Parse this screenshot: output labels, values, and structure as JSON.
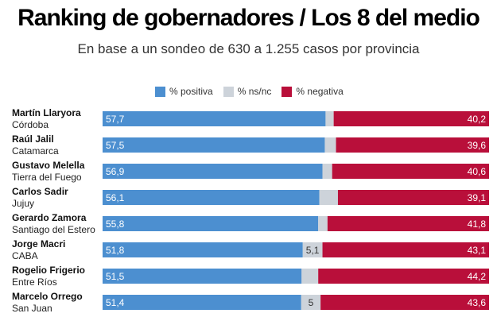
{
  "header": {
    "title": "Ranking de gobernadores / Los 8 del medio",
    "subtitle": "En base a un sondeo de 630 a 1.255 casos por provincia"
  },
  "legend": {
    "positive": "% positiva",
    "nsnc": "% ns/nc",
    "negative": "% negativa"
  },
  "colors": {
    "positive": "#4c8fd0",
    "nsnc": "#cdd3da",
    "negative": "#b90f3a"
  },
  "rows": [
    {
      "name": "Martín Llaryora",
      "province": "Córdoba"
    },
    {
      "name": "Raúl Jalil",
      "province": "Catamarca"
    },
    {
      "name": "Gustavo Melella",
      "province": "Tierra del Fuego"
    },
    {
      "name": "Carlos Sadir",
      "province": "Jujuy"
    },
    {
      "name": "Gerardo Zamora",
      "province": "Santiago del Estero"
    },
    {
      "name": "Jorge Macri",
      "province": "CABA"
    },
    {
      "name": "Rogelio Frigerio",
      "province": "Entre Ríos"
    },
    {
      "name": "Marcelo Orrego",
      "province": "San Juan"
    }
  ],
  "chart_data": {
    "type": "bar",
    "orientation": "horizontal",
    "stacked": true,
    "categories": [
      "Martín Llaryora",
      "Raúl Jalil",
      "Gustavo Melella",
      "Carlos Sadir",
      "Gerardo Zamora",
      "Jorge Macri",
      "Rogelio Frigerio",
      "Marcelo Orrego"
    ],
    "series": [
      {
        "name": "% positiva",
        "values": [
          57.7,
          57.5,
          56.9,
          56.1,
          55.8,
          51.8,
          51.5,
          51.4
        ],
        "labels": [
          "57,7",
          "57,5",
          "56,9",
          "56,1",
          "55,8",
          "51,8",
          "51,5",
          "51,4"
        ]
      },
      {
        "name": "% ns/nc",
        "values": [
          2.1,
          2.9,
          2.5,
          4.8,
          2.4,
          5.1,
          4.3,
          5.0
        ],
        "labels": [
          "",
          "",
          "",
          "",
          "",
          "5,1",
          "",
          "5"
        ]
      },
      {
        "name": "% negativa",
        "values": [
          40.2,
          39.6,
          40.6,
          39.1,
          41.8,
          43.1,
          44.2,
          43.6
        ],
        "labels": [
          "40,2",
          "39,6",
          "40,6",
          "39,1",
          "41,8",
          "43,1",
          "44,2",
          "43,6"
        ]
      }
    ],
    "xlim": [
      0,
      100
    ],
    "title": "Ranking de gobernadores / Los 8 del medio",
    "subtitle": "En base a un sondeo de 630 a 1.255 casos por provincia",
    "legend_position": "top"
  }
}
